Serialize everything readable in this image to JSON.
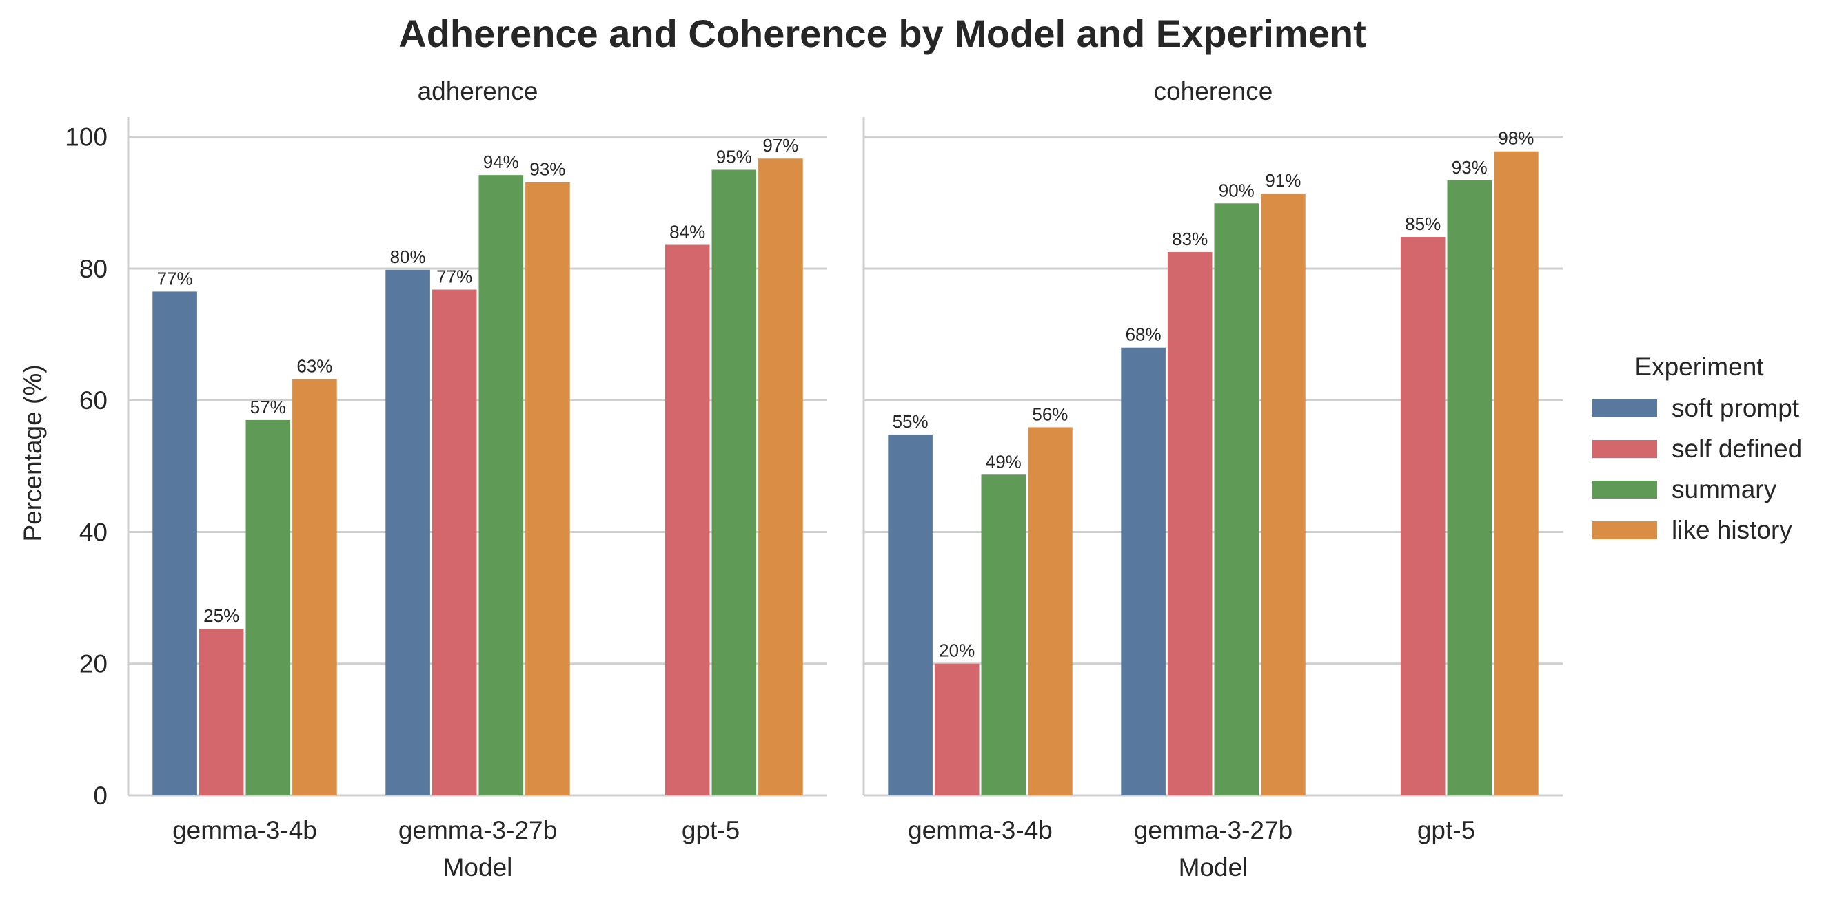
{
  "title": "Adherence and Coherence by Model and Experiment",
  "ylabel": "Percentage (%)",
  "xlabel": "Model",
  "legend_title": "Experiment",
  "colors": {
    "soft prompt": "#58789e",
    "self defined": "#d3676b",
    "summary": "#609a57",
    "like history": "#d98d45",
    "grid": "#cfcfcf",
    "text": "#262626"
  },
  "chart_data": [
    {
      "type": "bar",
      "title": "adherence",
      "categories": [
        "gemma-3-4b",
        "gemma-3-27b",
        "gpt-5"
      ],
      "xlabel": "Model",
      "ylabel": "Percentage (%)",
      "ylim": [
        0,
        103
      ],
      "yticks": [
        0,
        20,
        40,
        60,
        80,
        100
      ],
      "grid": true,
      "legend": "right",
      "series": [
        {
          "name": "soft prompt",
          "values": [
            76.5,
            79.8,
            null
          ],
          "labels": [
            "77%",
            "80%",
            ""
          ]
        },
        {
          "name": "self defined",
          "values": [
            25.3,
            76.8,
            83.6
          ],
          "labels": [
            "25%",
            "77%",
            "84%"
          ]
        },
        {
          "name": "summary",
          "values": [
            57.0,
            94.2,
            95.0
          ],
          "labels": [
            "57%",
            "94%",
            "95%"
          ]
        },
        {
          "name": "like history",
          "values": [
            63.2,
            93.1,
            96.7
          ],
          "labels": [
            "63%",
            "93%",
            "97%"
          ]
        }
      ]
    },
    {
      "type": "bar",
      "title": "coherence",
      "categories": [
        "gemma-3-4b",
        "gemma-3-27b",
        "gpt-5"
      ],
      "xlabel": "Model",
      "ylabel": "",
      "ylim": [
        0,
        103
      ],
      "yticks": [
        0,
        20,
        40,
        60,
        80,
        100
      ],
      "grid": true,
      "legend": "right",
      "series": [
        {
          "name": "soft prompt",
          "values": [
            54.8,
            68.0,
            null
          ],
          "labels": [
            "55%",
            "68%",
            ""
          ]
        },
        {
          "name": "self defined",
          "values": [
            20.0,
            82.5,
            84.8
          ],
          "labels": [
            "20%",
            "83%",
            "85%"
          ]
        },
        {
          "name": "summary",
          "values": [
            48.7,
            89.9,
            93.4
          ],
          "labels": [
            "49%",
            "90%",
            "93%"
          ]
        },
        {
          "name": "like history",
          "values": [
            55.9,
            91.4,
            97.8
          ],
          "labels": [
            "56%",
            "91%",
            "98%"
          ]
        }
      ]
    }
  ]
}
